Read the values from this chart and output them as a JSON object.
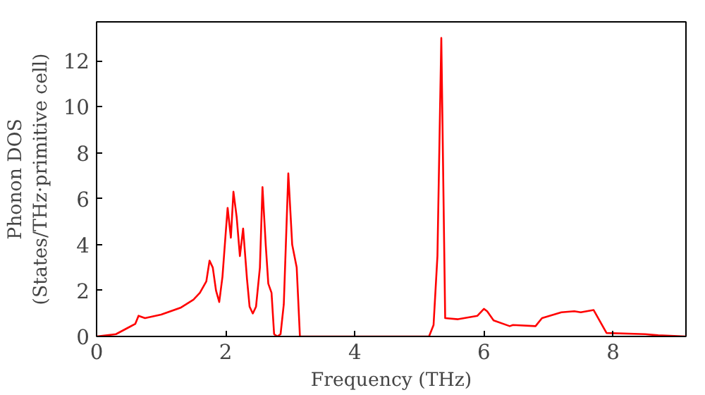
{
  "chart_data": {
    "type": "line",
    "xlabel": "Frequency (THz)",
    "ylabel": "Phonon DOS\n(States/THz·primitive cell)",
    "xlim": [
      0,
      9.13
    ],
    "ylim": [
      0,
      13.7
    ],
    "xticks": [
      0,
      2,
      4,
      6,
      8
    ],
    "yticks": [
      0,
      2,
      4,
      6,
      8,
      10,
      12
    ],
    "grid": false,
    "marker": "none",
    "line_style": "solid",
    "series": [
      {
        "color": "#ff0000",
        "x": [
          0,
          0.3,
          0.5,
          0.6,
          0.65,
          0.75,
          1.0,
          1.3,
          1.5,
          1.6,
          1.7,
          1.75,
          1.8,
          1.85,
          1.9,
          1.95,
          2.0,
          2.03,
          2.08,
          2.12,
          2.17,
          2.22,
          2.27,
          2.33,
          2.37,
          2.42,
          2.47,
          2.53,
          2.57,
          2.62,
          2.66,
          2.71,
          2.75,
          2.8,
          2.85,
          2.9,
          2.97,
          3.03,
          3.1,
          3.15,
          5.15,
          5.22,
          5.28,
          5.34,
          5.4,
          5.6,
          5.9,
          6.0,
          6.05,
          6.15,
          6.4,
          6.45,
          6.8,
          6.9,
          7.2,
          7.4,
          7.5,
          7.7,
          7.9,
          8.5,
          8.7,
          9.13
        ],
        "values": [
          0,
          0.1,
          0.4,
          0.55,
          0.9,
          0.8,
          0.95,
          1.25,
          1.6,
          1.9,
          2.4,
          3.3,
          3.0,
          2.0,
          1.5,
          2.6,
          4.5,
          5.6,
          4.3,
          6.3,
          5.2,
          3.5,
          4.7,
          2.5,
          1.3,
          1.0,
          1.3,
          3.0,
          6.5,
          4.0,
          2.3,
          1.9,
          0.1,
          0.0,
          0.1,
          1.4,
          7.1,
          4.0,
          3.0,
          0,
          0,
          0.5,
          3.5,
          13.0,
          0.8,
          0.75,
          0.9,
          1.2,
          1.1,
          0.7,
          0.45,
          0.5,
          0.45,
          0.8,
          1.05,
          1.1,
          1.05,
          1.15,
          0.15,
          0.1,
          0.05,
          0
        ]
      }
    ]
  }
}
